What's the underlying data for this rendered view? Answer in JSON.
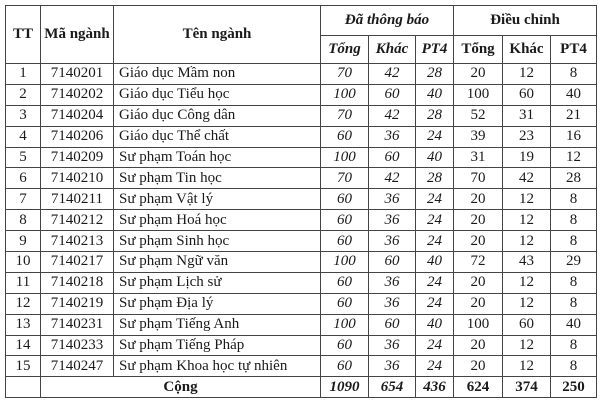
{
  "headers": {
    "tt": "TT",
    "ma_nganh": "Mã ngành",
    "ten_nganh": "Tên ngành",
    "da_thong_bao": "Đã thông báo",
    "dieu_chinh": "Điều chỉnh",
    "tong": "Tổng",
    "khac": "Khác",
    "pt4": "PT4"
  },
  "rows": [
    {
      "tt": "1",
      "ma": "7140201",
      "ten": "Giáo dục Mầm non",
      "tb": [
        "70",
        "42",
        "28"
      ],
      "dc": [
        "20",
        "12",
        "8"
      ]
    },
    {
      "tt": "2",
      "ma": "7140202",
      "ten": "Giáo dục Tiểu học",
      "tb": [
        "100",
        "60",
        "40"
      ],
      "dc": [
        "100",
        "60",
        "40"
      ]
    },
    {
      "tt": "3",
      "ma": "7140204",
      "ten": "Giáo dục Công dân",
      "tb": [
        "70",
        "42",
        "28"
      ],
      "dc": [
        "52",
        "31",
        "21"
      ]
    },
    {
      "tt": "4",
      "ma": "7140206",
      "ten": "Giáo dục Thể chất",
      "tb": [
        "60",
        "36",
        "24"
      ],
      "dc": [
        "39",
        "23",
        "16"
      ]
    },
    {
      "tt": "5",
      "ma": "7140209",
      "ten": "Sư phạm Toán học",
      "tb": [
        "100",
        "60",
        "40"
      ],
      "dc": [
        "31",
        "19",
        "12"
      ]
    },
    {
      "tt": "6",
      "ma": "7140210",
      "ten": "Sư phạm Tin học",
      "tb": [
        "70",
        "42",
        "28"
      ],
      "dc": [
        "70",
        "42",
        "28"
      ]
    },
    {
      "tt": "7",
      "ma": "7140211",
      "ten": "Sư phạm Vật lý",
      "tb": [
        "60",
        "36",
        "24"
      ],
      "dc": [
        "20",
        "12",
        "8"
      ]
    },
    {
      "tt": "8",
      "ma": "7140212",
      "ten": "Sư phạm Hoá học",
      "tb": [
        "60",
        "36",
        "24"
      ],
      "dc": [
        "20",
        "12",
        "8"
      ]
    },
    {
      "tt": "9",
      "ma": "7140213",
      "ten": "Sư phạm Sinh học",
      "tb": [
        "60",
        "36",
        "24"
      ],
      "dc": [
        "20",
        "12",
        "8"
      ]
    },
    {
      "tt": "10",
      "ma": "7140217",
      "ten": "Sư phạm Ngữ văn",
      "tb": [
        "100",
        "60",
        "40"
      ],
      "dc": [
        "72",
        "43",
        "29"
      ]
    },
    {
      "tt": "11",
      "ma": "7140218",
      "ten": "Sư phạm Lịch sử",
      "tb": [
        "60",
        "36",
        "24"
      ],
      "dc": [
        "20",
        "12",
        "8"
      ]
    },
    {
      "tt": "12",
      "ma": "7140219",
      "ten": "Sư phạm Địa lý",
      "tb": [
        "60",
        "36",
        "24"
      ],
      "dc": [
        "20",
        "12",
        "8"
      ]
    },
    {
      "tt": "13",
      "ma": "7140231",
      "ten": "Sư phạm Tiếng Anh",
      "tb": [
        "100",
        "60",
        "40"
      ],
      "dc": [
        "100",
        "60",
        "40"
      ]
    },
    {
      "tt": "14",
      "ma": "7140233",
      "ten": "Sư phạm Tiếng Pháp",
      "tb": [
        "60",
        "36",
        "24"
      ],
      "dc": [
        "20",
        "12",
        "8"
      ]
    },
    {
      "tt": "15",
      "ma": "7140247",
      "ten": "Sư phạm Khoa học tự nhiên",
      "tb": [
        "60",
        "36",
        "24"
      ],
      "dc": [
        "20",
        "12",
        "8"
      ]
    }
  ],
  "total": {
    "label": "Cộng",
    "tb": [
      "1090",
      "654",
      "436"
    ],
    "dc": [
      "624",
      "374",
      "250"
    ]
  }
}
